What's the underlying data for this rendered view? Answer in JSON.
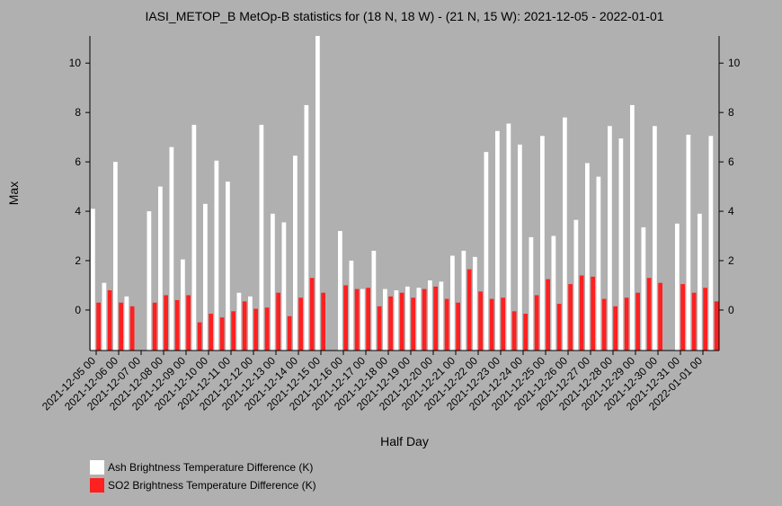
{
  "chart_data": {
    "type": "bar",
    "title": "IASI_METOP_B MetOp-B statistics for (18 N, 18 W) - (21 N, 15 W): 2021-12-05 - 2022-01-01",
    "x_label": "Half Day",
    "y_label": "Max",
    "categories": [
      "2021-12-05 00",
      null,
      "2021-12-06 00",
      null,
      "2021-12-07 00",
      null,
      "2021-12-08 00",
      null,
      "2021-12-09 00",
      null,
      "2021-12-10 00",
      null,
      "2021-12-11 00",
      null,
      "2021-12-12 00",
      null,
      "2021-12-13 00",
      null,
      "2021-12-14 00",
      null,
      "2021-12-15 00",
      null,
      "2021-12-16 00",
      null,
      "2021-12-17 00",
      null,
      "2021-12-18 00",
      null,
      "2021-12-19 00",
      null,
      "2021-12-20 00",
      null,
      "2021-12-21 00",
      null,
      "2021-12-22 00",
      null,
      "2021-12-23 00",
      null,
      "2021-12-24 00",
      null,
      "2021-12-25 00",
      null,
      "2021-12-26 00",
      null,
      "2021-12-27 00",
      null,
      "2021-12-28 00",
      null,
      "2021-12-29 00",
      null,
      "2021-12-30 00",
      null,
      "2021-12-31 00",
      null,
      "2022-01-01 00",
      null
    ],
    "series": [
      {
        "name": "Ash Brightness Temperature Difference (K)",
        "color": "#ffffff",
        "values": [
          4.1,
          1.1,
          6.0,
          0.55,
          null,
          4.0,
          5.0,
          6.6,
          2.05,
          7.5,
          4.3,
          6.05,
          5.2,
          0.7,
          0.55,
          7.5,
          3.9,
          3.55,
          6.25,
          8.3,
          11.1,
          null,
          3.2,
          2.0,
          0.85,
          2.4,
          0.85,
          0.8,
          0.95,
          0.9,
          1.2,
          1.15,
          2.2,
          2.4,
          2.15,
          6.4,
          7.25,
          7.55,
          6.7,
          2.95,
          7.05,
          3.0,
          7.8,
          3.65,
          5.95,
          5.4,
          7.45,
          6.95,
          8.3,
          3.35,
          7.45,
          null,
          3.5,
          7.1,
          3.9,
          7.05
        ]
      },
      {
        "name": "SO2 Brightness Temperature Difference (K)",
        "color": "#ff2020",
        "values": [
          0.3,
          0.8,
          0.3,
          0.15,
          null,
          0.3,
          0.6,
          0.4,
          0.6,
          -0.5,
          -0.15,
          -0.3,
          -0.05,
          0.35,
          0.05,
          0.1,
          0.7,
          -0.25,
          0.5,
          1.3,
          0.7,
          null,
          1.0,
          0.85,
          0.9,
          0.15,
          0.55,
          0.7,
          0.5,
          0.85,
          0.95,
          0.45,
          0.3,
          1.65,
          0.75,
          0.45,
          0.5,
          -0.05,
          -0.15,
          0.6,
          1.25,
          0.25,
          1.05,
          1.4,
          1.35,
          0.45,
          0.15,
          0.5,
          0.7,
          1.3,
          1.1,
          null,
          1.05,
          0.7,
          0.9,
          0.35
        ]
      }
    ],
    "ylim": [
      -1.64,
      11.1
    ],
    "yticks": [
      0,
      2,
      4,
      6,
      8,
      10
    ]
  }
}
